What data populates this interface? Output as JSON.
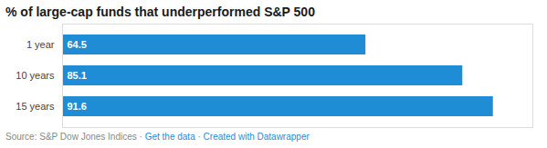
{
  "chart_data": {
    "type": "bar",
    "orientation": "horizontal",
    "title": "% of large-cap funds that underperformed S&P 500",
    "categories": [
      "1 year",
      "10 years",
      "15 years"
    ],
    "values": [
      64.5,
      85.1,
      91.6
    ],
    "color": "#1f8dd6",
    "xlim": [
      0,
      100
    ],
    "data_labels": true,
    "tick_labels": "y",
    "grid": false,
    "annotations": [
      {
        "text": "Source: S&P Dow Jones Indices · ",
        "color": "#888888"
      },
      {
        "text": "Get the data",
        "color": "#1f8dd6"
      },
      {
        "text": " · ",
        "color": "#888888"
      },
      {
        "text": "Created with Datawrapper",
        "color": "#1f8dd6"
      }
    ]
  }
}
